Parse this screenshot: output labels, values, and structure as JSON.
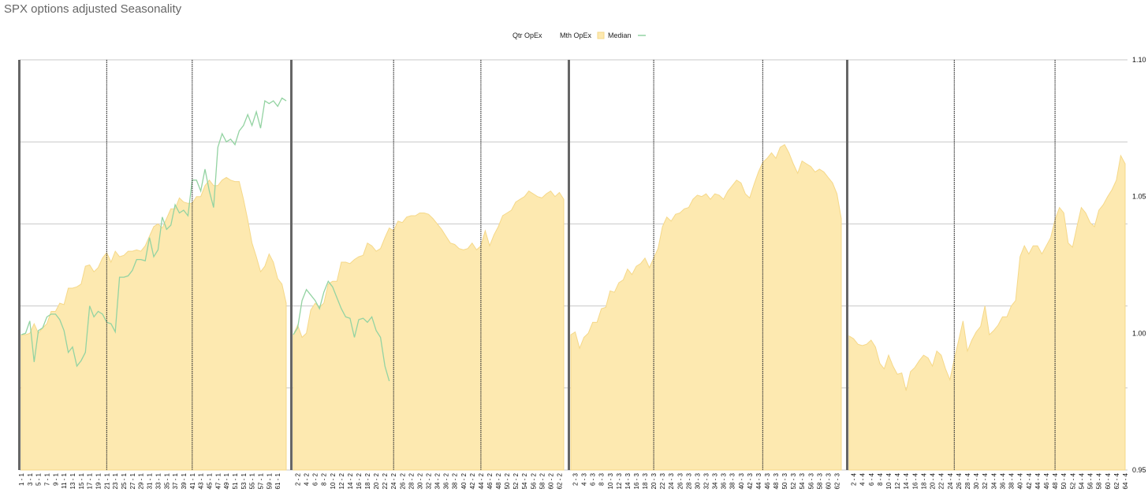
{
  "chart_data": {
    "type": "area",
    "title": "SPX options adjusted Seasonality",
    "xlabel": "",
    "ylabel": "",
    "ylim": [
      0.95,
      1.1
    ],
    "yticks": [
      0.95,
      1.0,
      1.05,
      1.1
    ],
    "ytick_labels": [
      "0.95",
      "1.00",
      "1.05",
      "1.10"
    ],
    "grid": true,
    "legend": {
      "placement": "top-center",
      "entries": [
        {
          "label": "Qtr OpEx",
          "marker": "none"
        },
        {
          "label": "Mth OpEx",
          "marker": "yellow-square"
        },
        {
          "label": "Median",
          "marker": "green-line"
        }
      ]
    },
    "colors": {
      "area_fill": "#fde9b0",
      "area_stroke": "#f5d889",
      "line": "#93d3a2",
      "grid": "#c8c8c8",
      "separator": "#666666"
    },
    "panels": [
      {
        "quarter": 1,
        "n": 63,
        "opex_days": [
          21,
          41
        ],
        "area": [
          0.9995,
          0.9995,
          1.0,
          1.0035,
          1.0,
          1.002,
          1.0035,
          1.008,
          1.008,
          1.011,
          1.0105,
          1.0165,
          1.0165,
          1.017,
          1.018,
          1.0245,
          1.025,
          1.0225,
          1.024,
          1.0275,
          1.0295,
          1.026,
          1.03,
          1.028,
          1.0285,
          1.03,
          1.03,
          1.0305,
          1.03,
          1.032,
          1.0355,
          1.039,
          1.04,
          1.0385,
          1.042,
          1.0455,
          1.0455,
          1.0495,
          1.048,
          1.0475,
          1.0475,
          1.05,
          1.05,
          1.054,
          1.056,
          1.054,
          1.054,
          1.056,
          1.057,
          1.056,
          1.0555,
          1.0555,
          1.049,
          1.0415,
          1.033,
          1.028,
          1.0225,
          1.0245,
          1.029,
          1.026,
          1.02,
          1.018,
          1.011
        ],
        "line": [
          0.9995,
          1.0,
          1.0045,
          0.9895,
          1.001,
          1.002,
          1.006,
          1.007,
          1.007,
          1.005,
          1.001,
          0.993,
          0.995,
          0.988,
          0.99,
          0.993,
          1.01,
          1.006,
          1.008,
          1.007,
          1.004,
          1.0035,
          1.0005,
          1.0205,
          1.0205,
          1.021,
          1.023,
          1.027,
          1.027,
          1.0265,
          1.035,
          1.028,
          1.0305,
          1.0425,
          1.038,
          1.0395,
          1.047,
          1.044,
          1.045,
          1.043,
          1.056,
          1.056,
          1.052,
          1.06,
          1.052,
          1.046,
          1.068,
          1.073,
          1.07,
          1.071,
          1.069,
          1.074,
          1.076,
          1.08,
          1.076,
          1.081,
          1.075,
          1.085,
          1.084,
          1.085,
          1.083,
          1.086,
          1.085
        ]
      },
      {
        "quarter": 2,
        "n": 63,
        "opex_days": [
          24,
          44
        ],
        "area": [
          0.9995,
          1.003,
          0.9985,
          1.0,
          1.0085,
          1.011,
          1.0095,
          1.011,
          1.018,
          1.019,
          1.019,
          1.026,
          1.026,
          1.0255,
          1.027,
          1.028,
          1.0285,
          1.033,
          1.032,
          1.03,
          1.031,
          1.035,
          1.0385,
          1.0375,
          1.041,
          1.0405,
          1.0425,
          1.043,
          1.043,
          1.044,
          1.044,
          1.0435,
          1.042,
          1.04,
          1.038,
          1.0355,
          1.033,
          1.0325,
          1.031,
          1.0305,
          1.031,
          1.033,
          1.0305,
          1.032,
          1.0375,
          1.032,
          1.036,
          1.039,
          1.043,
          1.044,
          1.045,
          1.048,
          1.049,
          1.05,
          1.052,
          1.051,
          1.05,
          1.0495,
          1.051,
          1.052,
          1.05,
          1.0515,
          1.049
        ],
        "line": [
          0.9995,
          1.002,
          1.012,
          1.016,
          1.014,
          1.012,
          1.009,
          1.015,
          1.019,
          1.017,
          1.013,
          1.009,
          1.006,
          1.0055,
          0.9985,
          1.005,
          1.0055,
          1.004,
          1.006,
          1.001,
          0.9985,
          0.988,
          0.9825
        ]
      },
      {
        "quarter": 3,
        "n": 63,
        "opex_days": [
          20,
          45
        ],
        "area": [
          0.9995,
          1.0005,
          0.9945,
          0.9985,
          1.0,
          1.004,
          1.004,
          1.009,
          1.0095,
          1.0155,
          1.015,
          1.0185,
          1.0195,
          1.0235,
          1.0215,
          1.0245,
          1.0255,
          1.0275,
          1.024,
          1.0275,
          1.031,
          1.039,
          1.0425,
          1.041,
          1.0435,
          1.044,
          1.0455,
          1.046,
          1.049,
          1.0505,
          1.05,
          1.051,
          1.049,
          1.051,
          1.0505,
          1.049,
          1.052,
          1.054,
          1.056,
          1.055,
          1.051,
          1.0495,
          1.0545,
          1.059,
          1.0625,
          1.064,
          1.066,
          1.064,
          1.068,
          1.069,
          1.066,
          1.062,
          1.0585,
          1.063,
          1.062,
          1.061,
          1.059,
          1.06,
          1.059,
          1.057,
          1.055,
          1.051,
          1.042
        ],
        "line": []
      },
      {
        "quarter": 4,
        "n": 64,
        "opex_days": [
          25,
          48
        ],
        "area": [
          0.999,
          0.998,
          0.996,
          0.9955,
          0.996,
          0.9975,
          0.995,
          0.989,
          0.987,
          0.992,
          0.988,
          0.985,
          0.9855,
          0.979,
          0.986,
          0.9875,
          0.99,
          0.992,
          0.991,
          0.988,
          0.9935,
          0.992,
          0.987,
          0.983,
          0.9905,
          0.9975,
          1.0045,
          0.9935,
          0.9975,
          1.0005,
          1.0025,
          1.01,
          0.9995,
          1.001,
          1.003,
          1.006,
          1.006,
          1.01,
          1.012,
          1.028,
          1.032,
          1.029,
          1.032,
          1.032,
          1.029,
          1.032,
          1.035,
          1.0415,
          1.046,
          1.044,
          1.033,
          1.0315,
          1.039,
          1.046,
          1.044,
          1.0405,
          1.039,
          1.045,
          1.047,
          1.05,
          1.0525,
          1.056,
          1.065,
          1.062
        ],
        "line": []
      }
    ],
    "x_tick_labels": [
      [
        "1 - 1",
        "3 - 1",
        "5 - 1",
        "7 - 1",
        "9 - 1",
        "11 - 1",
        "13 - 1",
        "15 - 1",
        "17 - 1",
        "19 - 1",
        "21 - 1",
        "23 - 1",
        "25 - 1",
        "27 - 1",
        "29 - 1",
        "31 - 1",
        "33 - 1",
        "35 - 1",
        "37 - 1",
        "39 - 1",
        "41 - 1",
        "43 - 1",
        "45 - 1",
        "47 - 1",
        "49 - 1",
        "51 - 1",
        "53 - 1",
        "55 - 1",
        "57 - 1",
        "59 - 1",
        "61 - 1"
      ],
      [
        "2 - 2",
        "4 - 2",
        "6 - 2",
        "8 - 2",
        "10 - 2",
        "12 - 2",
        "14 - 2",
        "16 - 2",
        "18 - 2",
        "20 - 2",
        "22 - 2",
        "24 - 2",
        "26 - 2",
        "28 - 2",
        "30 - 2",
        "32 - 2",
        "34 - 2",
        "36 - 2",
        "38 - 2",
        "40 - 2",
        "42 - 2",
        "44 - 2",
        "46 - 2",
        "48 - 2",
        "50 - 2",
        "52 - 2",
        "54 - 2",
        "56 - 2",
        "58 - 2",
        "60 - 2",
        "62 - 2"
      ],
      [
        "2 - 3",
        "4 - 3",
        "6 - 3",
        "8 - 3",
        "10 - 3",
        "12 - 3",
        "14 - 3",
        "16 - 3",
        "18 - 3",
        "20 - 3",
        "22 - 3",
        "24 - 3",
        "26 - 3",
        "28 - 3",
        "30 - 3",
        "32 - 3",
        "34 - 3",
        "36 - 3",
        "38 - 3",
        "40 - 3",
        "42 - 3",
        "44 - 3",
        "46 - 3",
        "48 - 3",
        "50 - 3",
        "52 - 3",
        "54 - 3",
        "56 - 3",
        "58 - 3",
        "60 - 3",
        "62 - 3"
      ],
      [
        "2 - 4",
        "4 - 4",
        "6 - 4",
        "8 - 4",
        "10 - 4",
        "12 - 4",
        "14 - 4",
        "16 - 4",
        "18 - 4",
        "20 - 4",
        "22 - 4",
        "24 - 4",
        "26 - 4",
        "28 - 4",
        "30 - 4",
        "32 - 4",
        "34 - 4",
        "36 - 4",
        "38 - 4",
        "40 - 4",
        "42 - 4",
        "44 - 4",
        "46 - 4",
        "48 - 4",
        "50 - 4",
        "52 - 4",
        "54 - 4",
        "56 - 4",
        "58 - 4",
        "60 - 4",
        "62 - 4",
        "64 - 4"
      ]
    ]
  }
}
